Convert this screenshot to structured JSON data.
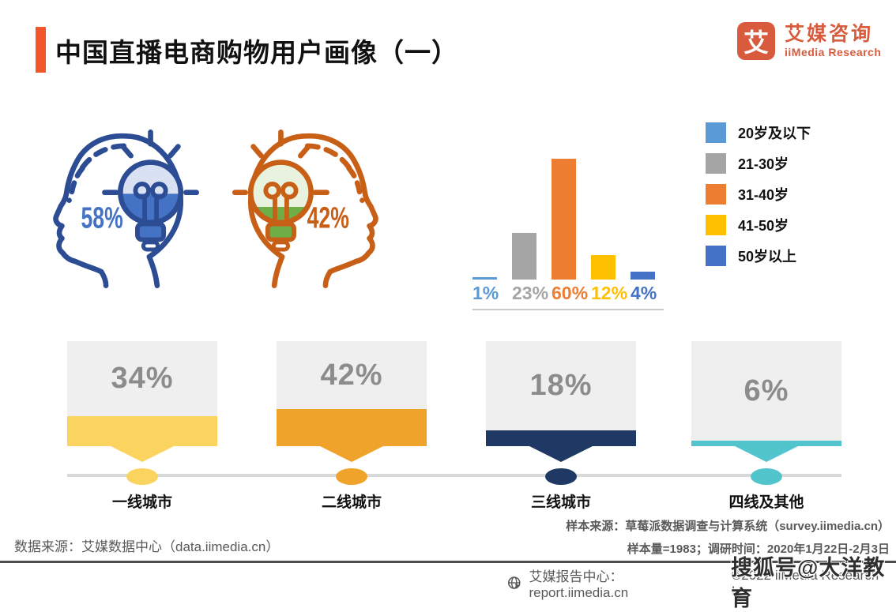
{
  "header": {
    "title": "中国直播电商购物用户画像（一）",
    "accent_color": "#F2572C",
    "logo": {
      "glyph": "艾",
      "name_cn": "艾媒咨询",
      "name_en": "iiMedia Research",
      "brand_color": "#D95B3D"
    }
  },
  "chart_data": [
    {
      "name": "gender_split",
      "type": "pictogram",
      "values": [
        58,
        42
      ],
      "value_labels": [
        "58%",
        "42%"
      ],
      "colors": [
        "#2C4C94",
        "#C75F17"
      ],
      "accent_colors": [
        "#4472C4",
        "#6FAD47"
      ]
    },
    {
      "name": "age_distribution",
      "type": "bar",
      "categories": [
        "20岁及以下",
        "21-30岁",
        "31-40岁",
        "41-50岁",
        "50岁以上"
      ],
      "values": [
        1,
        23,
        60,
        12,
        4
      ],
      "value_labels": [
        "1%",
        "23%",
        "60%",
        "12%",
        "4%"
      ],
      "colors": [
        "#5B9BD5",
        "#A5A5A5",
        "#ED7D31",
        "#FFC000",
        "#4472C4"
      ],
      "legend_position": "right",
      "ylim": [
        0,
        60
      ],
      "grid": false
    },
    {
      "name": "city_tier_distribution",
      "type": "bar",
      "categories": [
        "一线城市",
        "二线城市",
        "三线城市",
        "四线及其他"
      ],
      "values": [
        34,
        42,
        18,
        6
      ],
      "value_labels": [
        "34%",
        "42%",
        "18%",
        "6%"
      ],
      "colors": [
        "#FBD45F",
        "#EFA32A",
        "#1F3864",
        "#52C5CC"
      ]
    }
  ],
  "footer": {
    "left_source": "数据来源：艾媒数据中心（data.iimedia.cn）",
    "sample_source": "样本来源：草莓派数据调查与计算系统（survey.iimedia.cn）",
    "sample_info": "样本量=1983；调研时间：2020年1月22日-2月3日",
    "report_center": "艾媒报告中心：report.iimedia.cn",
    "copyright": "©2022  iiMedia Research Inc",
    "watermark": "搜狐号@大洋教育"
  }
}
